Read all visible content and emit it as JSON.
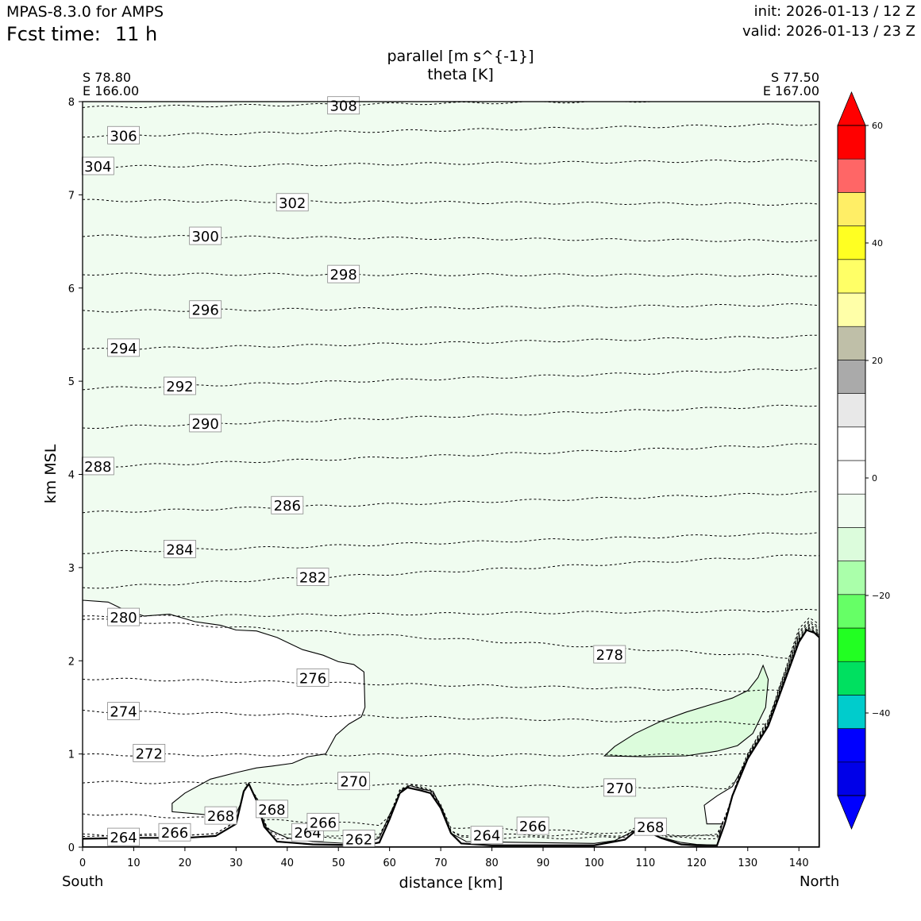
{
  "header": {
    "model": "MPAS-8.3.0 for AMPS",
    "fcst_label": "Fcst time:",
    "fcst_value": "11 h",
    "init": "init: 2026-01-13 / 12 Z",
    "valid": "valid: 2026-01-13 / 23 Z"
  },
  "endpoints": {
    "left_lat": "S 78.80",
    "left_lon": "E 166.00",
    "right_lat": "S 77.50",
    "right_lon": "E 167.00",
    "left_dir": "South",
    "right_dir": "North"
  },
  "chart_data": {
    "type": "cross-section contour",
    "title_fill": "parallel [m s^{-1}]",
    "title_contour": "theta [K]",
    "xlabel": "distance [km]",
    "ylabel": "km MSL",
    "xlim": [
      0,
      144
    ],
    "ylim": [
      0,
      8
    ],
    "xticks": [
      "0",
      "10",
      "20",
      "30",
      "40",
      "50",
      "60",
      "70",
      "80",
      "90",
      "100",
      "110",
      "120",
      "130",
      "140"
    ],
    "yticks": [
      "0",
      "1",
      "2",
      "3",
      "4",
      "5",
      "6",
      "7",
      "8"
    ],
    "terrain": [
      [
        0,
        0.09
      ],
      [
        10,
        0.1
      ],
      [
        20,
        0.1
      ],
      [
        26,
        0.12
      ],
      [
        30,
        0.25
      ],
      [
        31.5,
        0.6
      ],
      [
        32.5,
        0.68
      ],
      [
        34,
        0.5
      ],
      [
        35.5,
        0.22
      ],
      [
        38,
        0.06
      ],
      [
        45,
        0.03
      ],
      [
        55,
        0.02
      ],
      [
        58,
        0.05
      ],
      [
        60,
        0.3
      ],
      [
        62,
        0.58
      ],
      [
        63.5,
        0.64
      ],
      [
        66,
        0.61
      ],
      [
        68,
        0.58
      ],
      [
        70,
        0.42
      ],
      [
        72,
        0.15
      ],
      [
        74,
        0.04
      ],
      [
        80,
        0.02
      ],
      [
        100,
        0.02
      ],
      [
        106,
        0.08
      ],
      [
        108,
        0.17
      ],
      [
        110,
        0.18
      ],
      [
        113,
        0.1
      ],
      [
        117,
        0.03
      ],
      [
        120,
        0.02
      ],
      [
        124,
        0.02
      ],
      [
        125.5,
        0.25
      ],
      [
        127,
        0.55
      ],
      [
        130,
        0.95
      ],
      [
        134,
        1.3
      ],
      [
        137,
        1.75
      ],
      [
        140,
        2.2
      ],
      [
        141.5,
        2.33
      ],
      [
        143,
        2.3
      ],
      [
        144,
        2.25
      ]
    ],
    "theta_contours": [
      {
        "label": "264",
        "y0": 0.1,
        "slope": 0.0,
        "lx": 8,
        "ly": 0.11
      },
      {
        "label": "266",
        "y0": 0.13,
        "slope": 0.0,
        "lx": 18,
        "ly": 0.16
      },
      {
        "label": "268",
        "y0": 0.36,
        "slope": -0.002,
        "lx": 27,
        "ly": 0.34
      },
      {
        "label": "270",
        "y0": 0.7,
        "slope": -0.0005,
        "lx": 53,
        "ly": 0.71
      },
      {
        "label": "272",
        "y0": 0.99,
        "slope": 0.0,
        "lx": 13,
        "ly": 1.01
      },
      {
        "label": "274",
        "y0": 1.46,
        "slope": -0.001,
        "lx": 8,
        "ly": 1.46
      },
      {
        "label": "276",
        "y0": 1.81,
        "slope": -0.001,
        "lx": 45,
        "ly": 1.82
      },
      {
        "label": "278",
        "y0": 2.45,
        "slope": -0.003,
        "lx": 103,
        "ly": 2.07
      },
      {
        "label": "280",
        "y0": 2.47,
        "slope": 0.0005,
        "lx": 8,
        "ly": 2.47
      },
      {
        "label": "282",
        "y0": 2.78,
        "slope": 0.0025,
        "lx": 45,
        "ly": 2.9
      },
      {
        "label": "284",
        "y0": 3.16,
        "slope": 0.0015,
        "lx": 19,
        "ly": 3.2
      },
      {
        "label": "286",
        "y0": 3.59,
        "slope": 0.0015,
        "lx": 40,
        "ly": 3.67
      },
      {
        "label": "288",
        "y0": 4.08,
        "slope": 0.0017,
        "lx": 3,
        "ly": 4.09
      },
      {
        "label": "290",
        "y0": 4.5,
        "slope": 0.0017,
        "lx": 24,
        "ly": 4.55
      },
      {
        "label": "292",
        "y0": 4.92,
        "slope": 0.0015,
        "lx": 19,
        "ly": 4.95
      },
      {
        "label": "294",
        "y0": 5.34,
        "slope": 0.001,
        "lx": 8,
        "ly": 5.36
      },
      {
        "label": "296",
        "y0": 5.75,
        "slope": 0.0005,
        "lx": 24,
        "ly": 5.77
      },
      {
        "label": "298",
        "y0": 6.15,
        "slope": -0.0001,
        "lx": 51,
        "ly": 6.15
      },
      {
        "label": "300",
        "y0": 6.56,
        "slope": -0.0004,
        "lx": 24,
        "ly": 6.56
      },
      {
        "label": "302",
        "y0": 6.94,
        "slope": -0.0003,
        "lx": 41,
        "ly": 6.92
      },
      {
        "label": "304",
        "y0": 7.3,
        "slope": 0.0005,
        "lx": 3,
        "ly": 7.31
      },
      {
        "label": "306",
        "y0": 7.63,
        "slope": 0.0009,
        "lx": 8,
        "ly": 7.64
      },
      {
        "label": "308",
        "y0": 7.94,
        "slope": 0.0006,
        "lx": 51,
        "ly": 7.96
      }
    ],
    "extra_labels": [
      {
        "label": "262",
        "x": 54,
        "y": 0.09
      },
      {
        "label": "264",
        "x": 44,
        "y": 0.16
      },
      {
        "label": "266",
        "x": 47,
        "y": 0.27
      },
      {
        "label": "268",
        "x": 37,
        "y": 0.41
      },
      {
        "label": "264",
        "x": 79,
        "y": 0.13
      },
      {
        "label": "266",
        "x": 88,
        "y": 0.23
      },
      {
        "label": "270",
        "x": 105,
        "y": 0.64
      },
      {
        "label": "268",
        "x": 111,
        "y": 0.22
      }
    ],
    "fill_regions": [
      {
        "name": "near-zero wind (white, 0 to 5 m/s)",
        "color": "#ffffff",
        "outline": [
          [
            0,
            2.65
          ],
          [
            5,
            2.63
          ],
          [
            8,
            2.55
          ],
          [
            12,
            2.48
          ],
          [
            17,
            2.5
          ],
          [
            22,
            2.42
          ],
          [
            27,
            2.38
          ],
          [
            30,
            2.33
          ],
          [
            34,
            2.32
          ],
          [
            38,
            2.25
          ],
          [
            43,
            2.12
          ],
          [
            47,
            2.06
          ],
          [
            50,
            1.99
          ],
          [
            53,
            1.96
          ],
          [
            55,
            1.88
          ],
          [
            55.2,
            1.5
          ],
          [
            54.5,
            1.4
          ],
          [
            52,
            1.32
          ],
          [
            49.5,
            1.2
          ],
          [
            47.5,
            1.0
          ],
          [
            44,
            0.97
          ],
          [
            41,
            0.9
          ],
          [
            37,
            0.87
          ],
          [
            34,
            0.85
          ],
          [
            30,
            0.8
          ],
          [
            25,
            0.73
          ],
          [
            20,
            0.58
          ],
          [
            17.5,
            0.47
          ],
          [
            17.5,
            0.38
          ],
          [
            28,
            0.33
          ],
          [
            30,
            0.36
          ],
          [
            32.5,
            0.65
          ],
          [
            34,
            0.45
          ],
          [
            36,
            0.2
          ],
          [
            40,
            0.1
          ],
          [
            45,
            0.06
          ],
          [
            55,
            0.03
          ],
          [
            58,
            0.1
          ],
          [
            60,
            0.35
          ],
          [
            62.5,
            0.62
          ],
          [
            64,
            0.66
          ],
          [
            66.5,
            0.62
          ],
          [
            68.5,
            0.6
          ],
          [
            70.5,
            0.38
          ],
          [
            72,
            0.15
          ],
          [
            75,
            0.06
          ],
          [
            100,
            0.04
          ],
          [
            104,
            0.07
          ],
          [
            108,
            0.18
          ],
          [
            112,
            0.12
          ],
          [
            117,
            0.05
          ],
          [
            120,
            0.03
          ],
          [
            124,
            0.02
          ],
          [
            125,
            0.25
          ],
          [
            122,
            0.25
          ],
          [
            121.5,
            0.45
          ],
          [
            124,
            0.55
          ],
          [
            127,
            0.65
          ],
          [
            130,
            0.95
          ],
          [
            134,
            1.3
          ],
          [
            137,
            1.75
          ],
          [
            140,
            2.2
          ],
          [
            141.5,
            2.33
          ],
          [
            143,
            2.3
          ],
          [
            144,
            2.28
          ],
          [
            144,
            0
          ],
          [
            0,
            0
          ]
        ]
      },
      {
        "name": "weak northerly (light green, -10 to -5 m/s)",
        "color": "#dcfcdc",
        "outline": [
          [
            102,
            0.98
          ],
          [
            104,
            1.08
          ],
          [
            108,
            1.22
          ],
          [
            113,
            1.35
          ],
          [
            118,
            1.45
          ],
          [
            124,
            1.55
          ],
          [
            127,
            1.6
          ],
          [
            130,
            1.68
          ],
          [
            132,
            1.82
          ],
          [
            133,
            1.95
          ],
          [
            134,
            1.8
          ],
          [
            133.5,
            1.5
          ],
          [
            131,
            1.22
          ],
          [
            128,
            1.09
          ],
          [
            124,
            1.03
          ],
          [
            118,
            0.98
          ],
          [
            110,
            0.97
          ]
        ]
      }
    ],
    "colorbar": {
      "ticks": [
        "60",
        "40",
        "20",
        "0",
        "−20",
        "−40"
      ],
      "bands": [
        "#0000e8",
        "#0000ff",
        "#00cccc",
        "#00e060",
        "#22ff22",
        "#66ff66",
        "#aaffaa",
        "#dcfcdc",
        "#f0fcf0",
        "#ffffff",
        "#ffffff",
        "#e8e8e8",
        "#aaaaaa",
        "#bfbfa8",
        "#ffffa8",
        "#ffff66",
        "#ffff22",
        "#ffee66",
        "#ff6666",
        "#ff0000"
      ],
      "under_color": "#0000ff",
      "over_color": "#ff0000"
    },
    "background_fill": "#f0fcf0"
  }
}
